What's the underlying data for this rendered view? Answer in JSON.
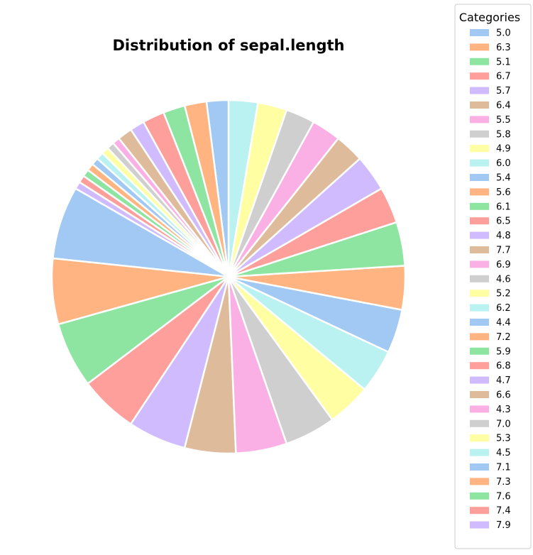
{
  "chart_data": {
    "type": "pie",
    "title": "Distribution of sepal.length",
    "legend_title": "Categories",
    "legend_position": "right",
    "categories": [
      "5.0",
      "6.3",
      "5.1",
      "6.7",
      "5.7",
      "6.4",
      "5.5",
      "5.8",
      "4.9",
      "6.0",
      "5.4",
      "5.6",
      "6.1",
      "6.5",
      "4.8",
      "7.7",
      "6.9",
      "4.6",
      "5.2",
      "6.2",
      "4.4",
      "7.2",
      "5.9",
      "6.8",
      "4.7",
      "6.6",
      "4.3",
      "7.0",
      "5.3",
      "4.5",
      "7.1",
      "7.3",
      "7.6",
      "7.4",
      "7.9"
    ],
    "values": [
      10,
      9,
      9,
      8,
      8,
      7,
      7,
      7,
      6,
      6,
      6,
      6,
      6,
      5,
      5,
      4,
      4,
      4,
      4,
      4,
      3,
      3,
      3,
      3,
      2,
      2,
      1,
      1,
      1,
      1,
      1,
      1,
      1,
      1,
      1
    ],
    "colors": [
      "#a1c9f4",
      "#ffb482",
      "#8de5a1",
      "#ff9f9b",
      "#d0bbff",
      "#debb9b",
      "#fab0e4",
      "#cfcfcf",
      "#fffea3",
      "#b9f2f0"
    ]
  }
}
